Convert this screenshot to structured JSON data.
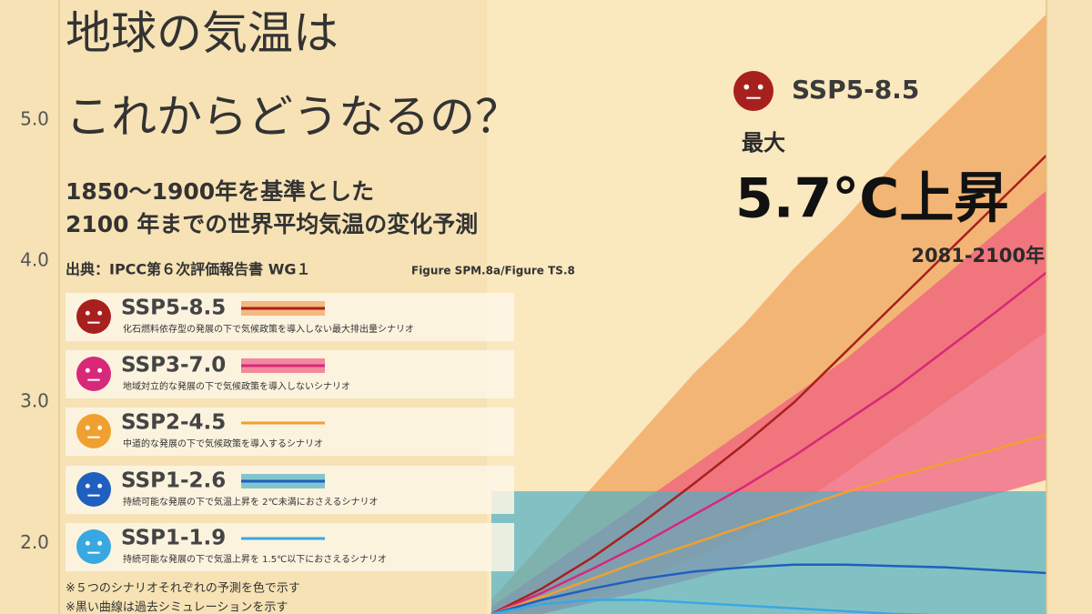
{
  "chart_data": {
    "type": "line",
    "title": [
      "地球の気温は",
      "これからどうなるの？"
    ],
    "subtitle": [
      "1850～1900年を基準とした",
      "2100 年までの世界平均気温の変化予測"
    ],
    "source": "出典：IPCC第６次評価報告書 WG１",
    "source_figure": "Figure SPM.8a/Figure TS.8",
    "notes": [
      "※５つのシナリオそれぞれの予測を色で示す",
      "※黒い曲線は過去シミュレーションを示す"
    ],
    "callout": {
      "scenario": "SSP5-8.5",
      "label": "最大",
      "value_text": "5.7°C上昇",
      "period": "2081-2100年"
    },
    "categories": [
      null,
      null,
      null,
      null,
      null,
      null,
      null,
      null,
      null,
      null,
      null,
      null
    ],
    "ylim": [
      1.5,
      5.85
    ],
    "yticks": [
      {
        "value": 2,
        "label": "2.0"
      },
      {
        "value": 3,
        "label": "3.0"
      },
      {
        "value": 4,
        "label": "4.0"
      },
      {
        "value": 5,
        "label": "5.0"
      }
    ],
    "grid": false,
    "series": [
      {
        "name": "SSP5-8.5",
        "description": "化石燃料依存型の発展の下で気候政策を導入しない最大排出量シナリオ",
        "color": "#a8201e",
        "band_color": "#f0a055",
        "values": [
          1.5,
          1.68,
          1.9,
          2.15,
          2.42,
          2.7,
          3.0,
          3.35,
          3.7,
          4.05,
          4.4,
          4.75
        ],
        "high": [
          1.6,
          2.0,
          2.4,
          2.8,
          3.2,
          3.55,
          3.95,
          4.3,
          4.7,
          5.05,
          5.4,
          5.75
        ],
        "low": [
          1.4,
          1.5,
          1.62,
          1.75,
          1.9,
          2.05,
          2.25,
          2.5,
          2.75,
          3.0,
          3.25,
          3.5
        ]
      },
      {
        "name": "SSP3-7.0",
        "description": "地域対立的な発展の下で気候政策を導入しないシナリオ",
        "color": "#d8287a",
        "band_color": "#ee5a80",
        "values": [
          1.5,
          1.65,
          1.82,
          2.0,
          2.2,
          2.4,
          2.62,
          2.86,
          3.1,
          3.37,
          3.64,
          3.92
        ],
        "high": [
          1.55,
          1.8,
          2.05,
          2.3,
          2.55,
          2.8,
          3.05,
          3.3,
          3.6,
          3.9,
          4.2,
          4.5
        ],
        "low": [
          1.45,
          1.5,
          1.58,
          1.66,
          1.75,
          1.85,
          1.95,
          2.05,
          2.15,
          2.25,
          2.35,
          2.45
        ]
      },
      {
        "name": "SSP2-4.5",
        "description": "中道的な発展の下で気候政策を導入するシナリオ",
        "color": "#f0a030",
        "values": [
          1.5,
          1.62,
          1.75,
          1.88,
          2.0,
          2.12,
          2.24,
          2.36,
          2.47,
          2.57,
          2.67,
          2.77
        ]
      },
      {
        "name": "SSP1-2.6",
        "description": "持続可能な発展の下で気温上昇を 2℃未満におさえるシナリオ",
        "color": "#1f5fbf",
        "band_color": "#4fb0c4",
        "values": [
          1.5,
          1.6,
          1.68,
          1.75,
          1.8,
          1.83,
          1.85,
          1.85,
          1.84,
          1.83,
          1.81,
          1.79
        ],
        "high": [
          2.37,
          2.37,
          2.37,
          2.37,
          2.37,
          2.37,
          2.37,
          2.37,
          2.37,
          2.37,
          2.37,
          2.37
        ],
        "low": [
          1.4,
          1.4,
          1.4,
          1.4,
          1.4,
          1.4,
          1.4,
          1.4,
          1.4,
          1.4,
          1.4,
          1.4
        ]
      },
      {
        "name": "SSP1-1.9",
        "description": "持続可能な発展の下で気温上昇を 1.5℃以下におさえるシナリオ",
        "color": "#3aa8e0",
        "values": [
          1.5,
          1.57,
          1.6,
          1.6,
          1.58,
          1.56,
          1.54,
          1.52,
          1.5,
          1.49,
          1.48,
          1.47
        ]
      }
    ]
  }
}
